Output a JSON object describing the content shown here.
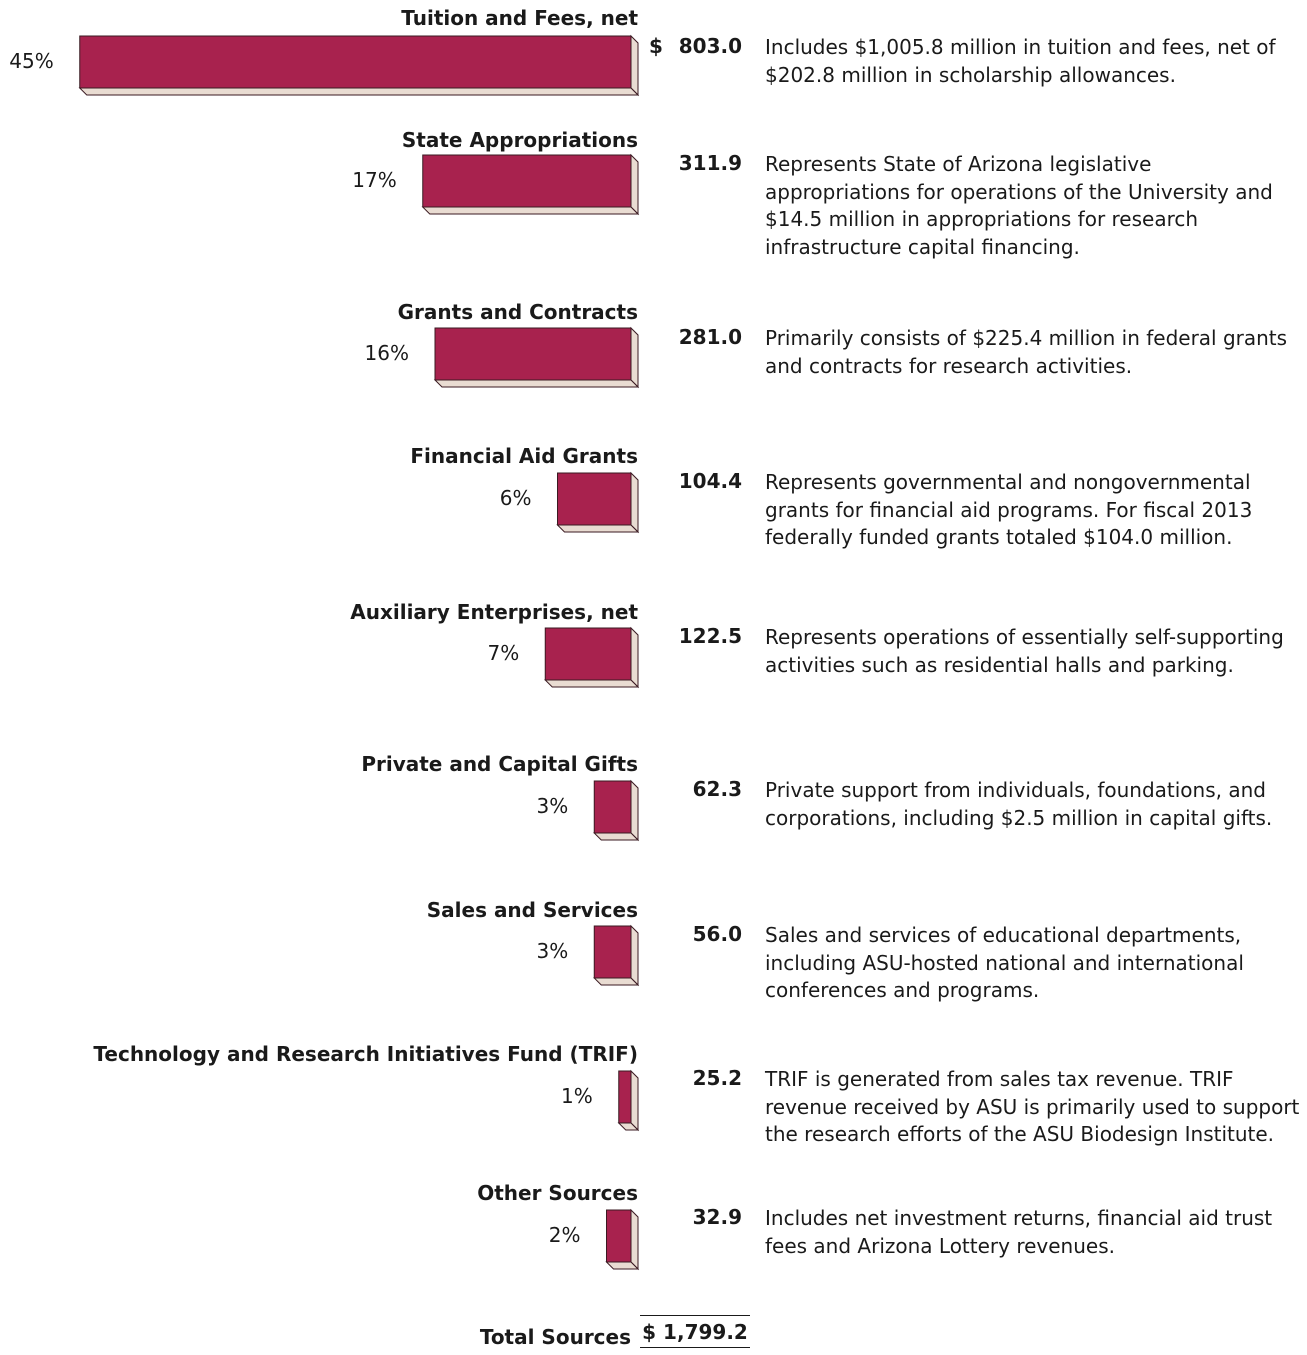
{
  "chart_data": {
    "type": "bar",
    "orientation": "horizontal",
    "currency_symbol": "$",
    "colors": {
      "bar_face": "#A8224E",
      "bar_side": "#E9DCD2",
      "bar_edge": "#3a1a22"
    },
    "items": [
      {
        "category": "Tuition and Fees, net",
        "percent": 45,
        "percent_label": "45%",
        "amount": 803.0,
        "amount_label": "803.0",
        "description": "Includes $1,005.8 million in tuition and fees, net of $202.8 million in scholarship allowances."
      },
      {
        "category": "State Appropriations",
        "percent": 17,
        "percent_label": "17%",
        "amount": 311.9,
        "amount_label": "311.9",
        "description": "Represents State of Arizona legislative appropriations for operations of the University and $14.5 million in appropriations for research infrastructure capital financing."
      },
      {
        "category": "Grants and Contracts",
        "percent": 16,
        "percent_label": "16%",
        "amount": 281.0,
        "amount_label": "281.0",
        "description": "Primarily consists of $225.4 million in federal grants and contracts for research activities."
      },
      {
        "category": "Financial Aid Grants",
        "percent": 6,
        "percent_label": "6%",
        "amount": 104.4,
        "amount_label": "104.4",
        "description": "Represents governmental and nongovernmental grants for financial aid programs.  For fiscal 2013 federally funded grants totaled $104.0 million."
      },
      {
        "category": "Auxiliary Enterprises, net",
        "percent": 7,
        "percent_label": "7%",
        "amount": 122.5,
        "amount_label": "122.5",
        "description": "Represents operations of essentially self-supporting activities such as residential halls and parking."
      },
      {
        "category": "Private and Capital Gifts",
        "percent": 3,
        "percent_label": "3%",
        "amount": 62.3,
        "amount_label": "62.3",
        "description": "Private support from individuals, foundations, and corporations, including $2.5 million in capital gifts."
      },
      {
        "category": "Sales and Services",
        "percent": 3,
        "percent_label": "3%",
        "amount": 56.0,
        "amount_label": "56.0",
        "description": "Sales and services of educational departments, including ASU-hosted national and international conferences and programs."
      },
      {
        "category": "Technology and Research Initiatives Fund (TRIF)",
        "percent": 1,
        "percent_label": "1%",
        "amount": 25.2,
        "amount_label": "25.2",
        "description": "TRIF is generated from sales tax revenue.  TRIF revenue received by ASU is primarily used to support the research efforts of the ASU Biodesign Institute."
      },
      {
        "category": "Other Sources",
        "percent": 2,
        "percent_label": "2%",
        "amount": 32.9,
        "amount_label": "32.9",
        "description": "Includes net investment returns, financial aid trust fees and Arizona Lottery revenues."
      }
    ],
    "total": {
      "label": "Total Sources",
      "value": 1799.2,
      "value_label": "$ 1,799.2"
    }
  }
}
